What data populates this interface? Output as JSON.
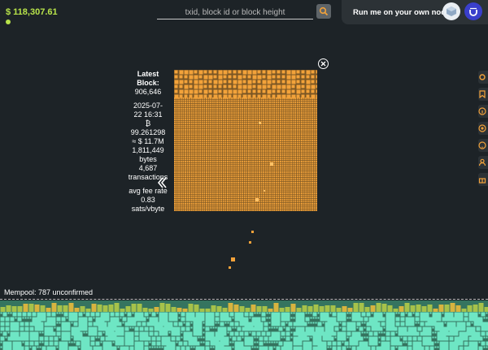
{
  "header": {
    "price": "$ 118,307.61",
    "search_placeholder": "txid, block id or block height",
    "run_node": "Run me on your own node"
  },
  "block": {
    "title_line1": "Latest",
    "title_line2": "Block:",
    "height": "906,646",
    "datetime_line1": "2025-07-",
    "datetime_line2": "22 16:31",
    "btc_symbol": "₿",
    "btc_amount": "99.261298",
    "usd_value": "≈ $ 11.7M",
    "size_value": "1,811,449",
    "size_unit": "bytes",
    "tx_count": "4,687",
    "tx_label": "transactions",
    "fee_label": "avg fee rate",
    "fee_value": "0.83",
    "fee_unit": "sats/vbyte"
  },
  "mempool": {
    "label": "Mempool: 787 unconfirmed"
  },
  "icons": {
    "search": "search-icon",
    "close": "close-icon",
    "chevron": "chevron-left-icon",
    "side": [
      "gear-icon",
      "bookmark-icon",
      "info-icon",
      "target-icon",
      "help-icon",
      "user-icon",
      "gift-icon"
    ]
  },
  "colors": {
    "background": "#1d2327",
    "accent_green": "#b8e34a",
    "block_orange": "#f2a23a",
    "mempool_teal": "#6ee6c4",
    "mempool_yellow": "#a6c24a"
  }
}
